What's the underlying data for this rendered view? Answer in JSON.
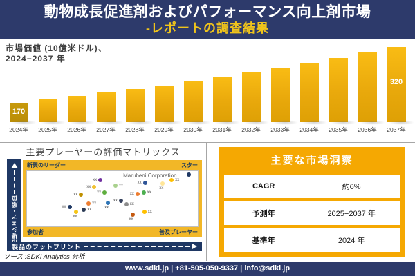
{
  "header": {
    "title_line1": "動物成長促進剤およびパフォーマンス向上剤市場",
    "title_line2": "-レポートの調査結果"
  },
  "chart_label": {
    "line1": "市場価値 (10億米ドル)、",
    "line2": "2024−2037 年"
  },
  "chart_data": [
    {
      "type": "bar",
      "title": "市場価値（10億米ドル）、2024−2037年",
      "ylabel": "10億米ドル",
      "categories": [
        "2024年",
        "2025年",
        "2026年",
        "2027年",
        "2028年",
        "2029年",
        "2030年",
        "2031年",
        "2032年",
        "2033年",
        "2034年",
        "2035年",
        "2036年",
        "2037年"
      ],
      "values": [
        170,
        179,
        188,
        197,
        207,
        217,
        228,
        239,
        251,
        264,
        277,
        291,
        305,
        320
      ],
      "data_labels": {
        "0": "170",
        "13": "320"
      },
      "bar_color": "#E9A90C",
      "first_bar_color": "#BE9207",
      "grid": "off",
      "legend": "none"
    },
    {
      "type": "scatter",
      "title": "主要プレーヤーの評価マトリックス",
      "x_axis_label": "製品のフットプリント",
      "y_axis_label": "市場シェア・順位",
      "company_label": "Marubeni Corporation",
      "quadrants": {
        "top_left": "新興のリーダー",
        "top_right": "スター",
        "bottom_left": "参加者",
        "bottom_right": "普及プレーヤー"
      },
      "points": [
        {
          "x": 43.0,
          "y": 15.7,
          "color": "#7030A0",
          "label": "xx",
          "label_side": "left"
        },
        {
          "x": 39.4,
          "y": 28.9,
          "color": "#F1C232",
          "label": "xx",
          "label_side": "left"
        },
        {
          "x": 31.7,
          "y": 42.2,
          "color": "#BF9000",
          "label": "xx",
          "label_side": "left"
        },
        {
          "x": 45.4,
          "y": 38.6,
          "color": "#5FAE3F",
          "label": "xx",
          "label_side": "left"
        },
        {
          "x": 24.9,
          "y": 65.1,
          "color": "#1F3864",
          "label": "xx",
          "label_side": "left"
        },
        {
          "x": 36.1,
          "y": 59.0,
          "color": "#ED7D31",
          "label": "xx",
          "label_side": "right"
        },
        {
          "x": 33.3,
          "y": 69.9,
          "color": "#2B3A55",
          "label": "xx",
          "label_side": "right"
        },
        {
          "x": 28.9,
          "y": 73.5,
          "color": "#F5C518",
          "label": "xx",
          "label_side": "below"
        },
        {
          "x": 47.4,
          "y": 57.8,
          "color": "#2E75B6",
          "label": "xx",
          "label_side": "below"
        },
        {
          "x": 51.8,
          "y": 26.5,
          "color": "#A9D18E",
          "label": "xx",
          "label_side": "right"
        },
        {
          "x": 64.7,
          "y": 41.0,
          "color": "#ED7D31",
          "label": "xx",
          "label_side": "left"
        },
        {
          "x": 68.3,
          "y": 38.6,
          "color": "#4CAF50",
          "label": "xx",
          "label_side": "right"
        },
        {
          "x": 69.1,
          "y": 21.7,
          "color": "#2F5597",
          "label": "xx",
          "label_side": "left"
        },
        {
          "x": 79.5,
          "y": 22.9,
          "color": "#FFE699",
          "label": "xx",
          "label_side": "below"
        },
        {
          "x": 84.7,
          "y": 15.7,
          "color": "#FFC000",
          "label": "xx",
          "label_side": "right"
        },
        {
          "x": 94.8,
          "y": 6.0,
          "color": "#1F3864",
          "label": "",
          "label_side": "none"
        },
        {
          "x": 55.0,
          "y": 54.2,
          "color": "#35415E",
          "label": "xx",
          "label_side": "left"
        },
        {
          "x": 58.2,
          "y": 60.2,
          "color": "#8C8C8C",
          "label": "xx",
          "label_side": "right"
        },
        {
          "x": 61.8,
          "y": 78.3,
          "color": "#C55A11",
          "label": "xx",
          "label_side": "below"
        },
        {
          "x": 68.7,
          "y": 73.5,
          "color": "#FFC000",
          "label": "xx",
          "label_side": "right"
        }
      ]
    },
    {
      "type": "table",
      "title": "主要な市場洞察",
      "rows": [
        {
          "label": "CAGR",
          "value": "約6%"
        },
        {
          "label": "予測年",
          "value": "2025−2037 年"
        },
        {
          "label": "基準年",
          "value": "2024 年"
        }
      ]
    }
  ],
  "source": "ソース :SDKI Analytics 分析",
  "footer": {
    "text": "www.sdki.jp | +81-505-050-9337 | info@sdki.jp"
  },
  "colors": {
    "navy": "#2D3A6B",
    "axis_navy": "#1F3864",
    "frame_gold": "#F2B727",
    "table_gold": "#F5A802",
    "title_yellow": "#F0C41B",
    "divider_gray": "#A6A6A6"
  }
}
